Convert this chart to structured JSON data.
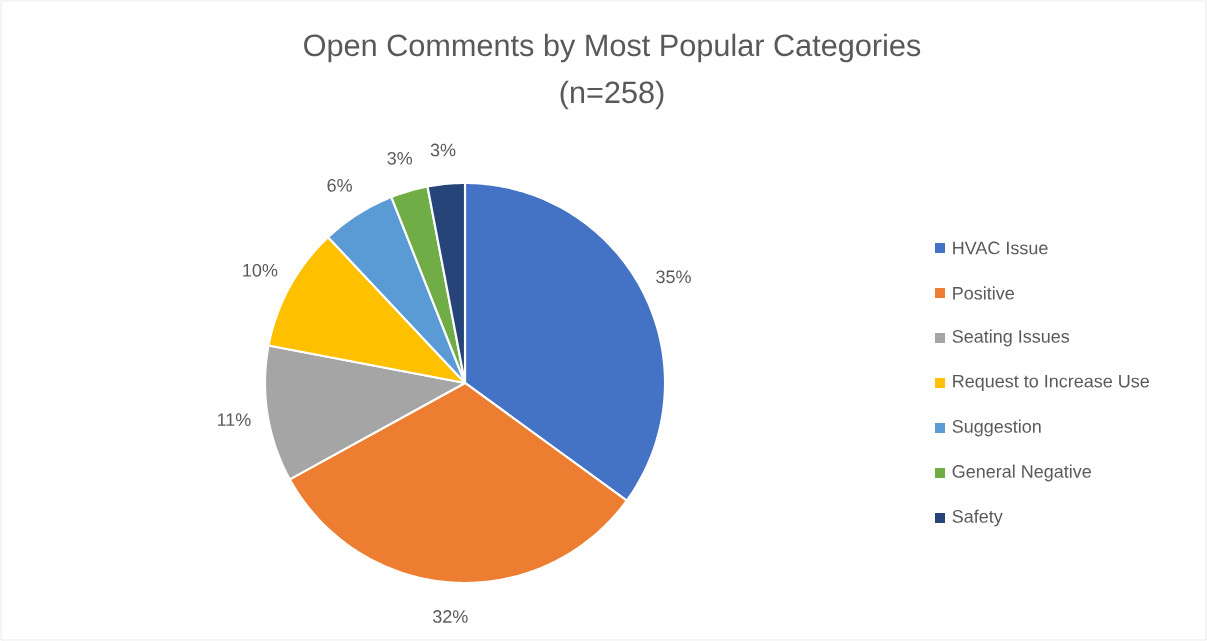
{
  "chart_data": {
    "type": "pie",
    "title": "Open Comments by Most Popular Categories",
    "subtitle": "(n=258)",
    "categories": [
      "HVAC Issue",
      "Positive",
      "Seating Issues",
      "Request to Increase Use",
      "Suggestion",
      "General Negative",
      "Safety"
    ],
    "values": [
      35,
      32,
      11,
      10,
      6,
      3,
      3
    ],
    "colors": [
      "#4472c4",
      "#ed7d31",
      "#a5a5a5",
      "#ffc000",
      "#5b9bd5",
      "#70ad47",
      "#264478"
    ],
    "value_labels": [
      "35%",
      "32%",
      "11%",
      "10%",
      "6%",
      "3%",
      "3%"
    ],
    "legend": "right"
  }
}
